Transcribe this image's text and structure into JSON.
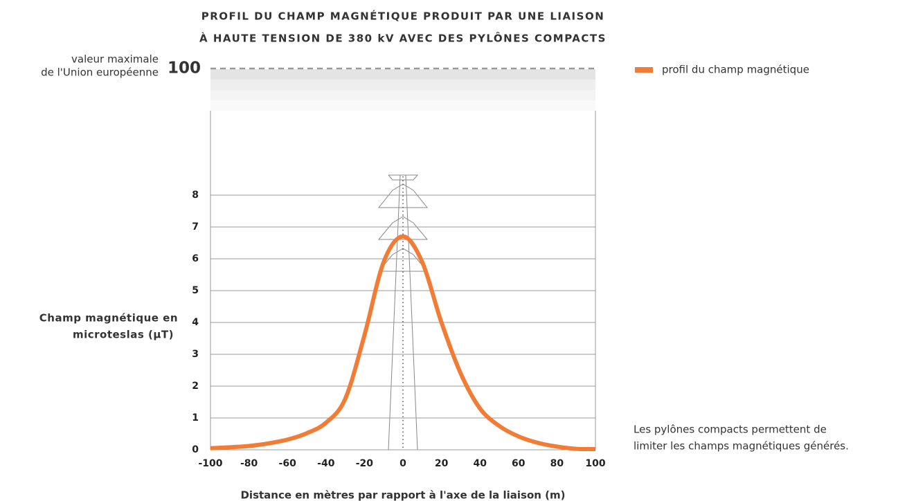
{
  "chart_data": {
    "type": "line",
    "title_lines": [
      "PROFIL DU CHAMP MAGNÉTIQUE PRODUIT PAR UNE LIAISON",
      "À HAUTE TENSION DE 380 kV AVEC DES PYLÔNES COMPACTS"
    ],
    "x_label": "Distance en mètres par rapport à l'axe de la liaison (m)",
    "y_label_lines": [
      "Champ magnétique en",
      "microteslas (µT)"
    ],
    "x": [
      -100,
      -90,
      -80,
      -70,
      -60,
      -50,
      -40,
      -30,
      -20,
      -10,
      0,
      10,
      20,
      30,
      40,
      50,
      60,
      70,
      80,
      90,
      100
    ],
    "series": [
      {
        "name": "profil du champ magnétique",
        "color": "#f07c36",
        "values": [
          0.05,
          0.08,
          0.12,
          0.2,
          0.32,
          0.52,
          0.85,
          1.6,
          3.6,
          5.9,
          6.7,
          5.9,
          4.0,
          2.4,
          1.3,
          0.75,
          0.42,
          0.22,
          0.1,
          0.03,
          0.02
        ]
      }
    ],
    "xlim": [
      -100,
      100
    ],
    "xticks": [
      -100,
      -80,
      -60,
      -40,
      -20,
      0,
      20,
      40,
      60,
      80,
      100
    ],
    "ylim": [
      0,
      9
    ],
    "yticks": [
      0,
      1,
      2,
      3,
      4,
      5,
      6,
      7,
      8
    ],
    "limit": {
      "value": 100,
      "label_lines": [
        "valeur maximale",
        "de l'Union européenne"
      ]
    },
    "note_lines": [
      "Les pylônes compacts permettent de",
      "limiter les champs magnétiques générés."
    ],
    "grid": true
  }
}
